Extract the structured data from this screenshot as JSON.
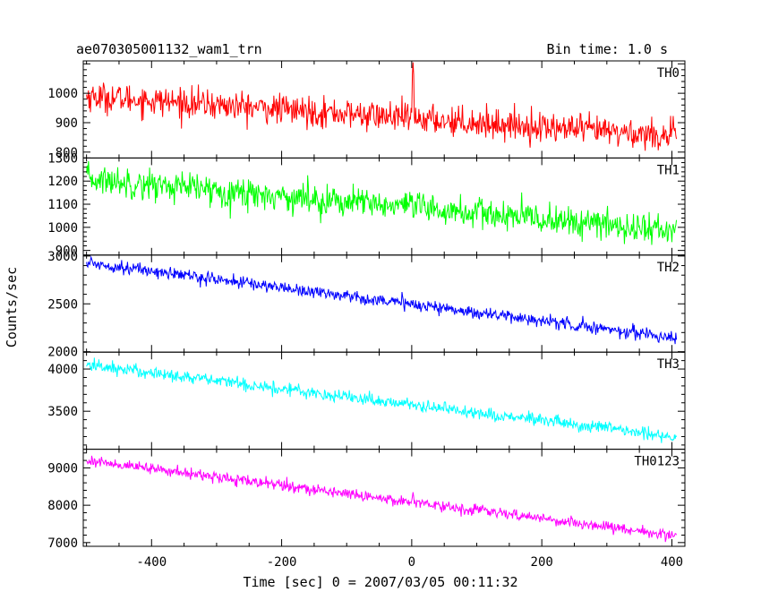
{
  "chart_data": {
    "type": "line",
    "title": "ae070305001132_wam1_trn",
    "subtitle": "Bin time: 1.0 s",
    "xlabel": "Time [sec] 0 = 2007/03/05 00:11:32",
    "ylabel": "Counts/sec",
    "xlim": [
      -505,
      420
    ],
    "x_ticks": [
      -400,
      -200,
      0,
      200,
      400
    ],
    "x_range": [
      -500,
      407
    ],
    "grid": false,
    "panels": [
      {
        "name": "TH0",
        "color": "#ff0000",
        "ylim": [
          780,
          1110
        ],
        "y_ticks": [
          800,
          900,
          1000
        ],
        "trend": [
          [
            -500,
            990
          ],
          [
            400,
            855
          ]
        ],
        "noise": 42,
        "spike": {
          "x": 2,
          "value": 1105
        }
      },
      {
        "name": "TH1",
        "color": "#00ff00",
        "ylim": [
          880,
          1300
        ],
        "y_ticks": [
          900,
          1000,
          1100,
          1200,
          1300
        ],
        "trend": [
          [
            -500,
            1210
          ],
          [
            400,
            985
          ]
        ],
        "noise": 55,
        "spike": null
      },
      {
        "name": "TH2",
        "color": "#0000ff",
        "ylim": [
          1995,
          3010
        ],
        "y_ticks": [
          2000,
          2500,
          3000
        ],
        "trend": [
          [
            -500,
            2930
          ],
          [
            400,
            2150
          ]
        ],
        "noise": 55,
        "spike": {
          "x": 2,
          "value": 2540
        }
      },
      {
        "name": "TH3",
        "color": "#00ffff",
        "ylim": [
          3050,
          4200
        ],
        "y_ticks": [
          3500,
          4000
        ],
        "trend": [
          [
            -500,
            4050
          ],
          [
            400,
            3200
          ]
        ],
        "noise": 65,
        "spike": null
      },
      {
        "name": "TH0123",
        "color": "#ff00ff",
        "ylim": [
          6900,
          9500
        ],
        "y_ticks": [
          7000,
          8000,
          9000
        ],
        "trend": [
          [
            -500,
            9200
          ],
          [
            400,
            7200
          ]
        ],
        "noise": 120,
        "spike": {
          "x": 2,
          "value": 8350
        }
      }
    ]
  }
}
